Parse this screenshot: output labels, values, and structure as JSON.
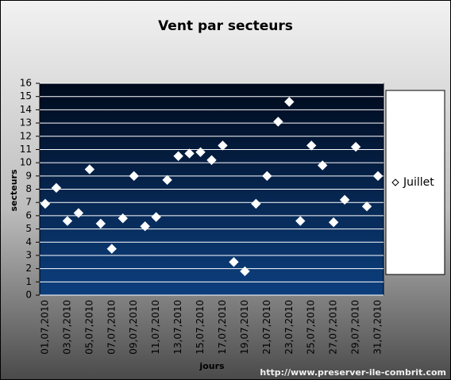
{
  "chart_data": {
    "type": "scatter",
    "title": "Vent par secteurs",
    "x_label": "jours",
    "y_label": "secteurs",
    "source": "http://www.preserver-ile-combrit.com",
    "categories": [
      "01,07,2010",
      null,
      "03,07,2010",
      null,
      "05,07,2010",
      null,
      "07,07,2010",
      null,
      "09,07,2010",
      null,
      "11,07,2010",
      null,
      "13,07,2010",
      null,
      "15,07,2010",
      null,
      "17,07,2010",
      null,
      "19,07,2010",
      null,
      "21,07,2010",
      null,
      "23,07,2010",
      null,
      "25,07,2010",
      null,
      "27,07,2010",
      null,
      "29,07,2010",
      null,
      "31,07,2010"
    ],
    "series": [
      {
        "name": "Juillet",
        "color": "#ffffff",
        "values": [
          6.9,
          8.1,
          5.6,
          6.2,
          9.5,
          5.4,
          3.5,
          5.8,
          9.0,
          5.2,
          5.9,
          8.7,
          10.5,
          10.7,
          10.8,
          10.2,
          11.3,
          2.5,
          1.8,
          6.9,
          9.0,
          13.1,
          14.6,
          5.6,
          11.3,
          9.8,
          5.5,
          7.2,
          11.2,
          6.7,
          9.0
        ]
      }
    ],
    "ylim": [
      0,
      16
    ],
    "yticks": [
      0,
      1,
      2,
      3,
      4,
      5,
      6,
      7,
      8,
      9,
      10,
      11,
      12,
      13,
      14,
      15,
      16
    ],
    "grid": true,
    "legend": "right"
  }
}
